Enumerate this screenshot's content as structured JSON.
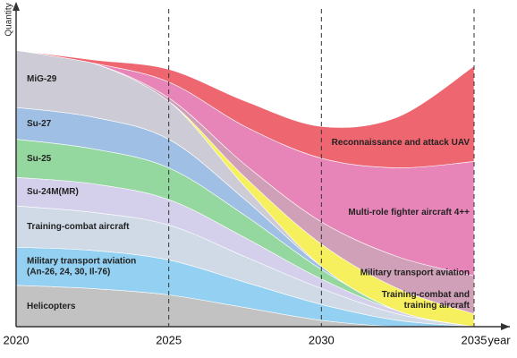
{
  "chart_data": {
    "type": "stacked_area",
    "y_label": "Quantity",
    "x_label": "year",
    "x": [
      2020,
      2022.5,
      2025,
      2027.5,
      2030,
      2032.5,
      2035
    ],
    "xlim": [
      2020,
      2035
    ],
    "xticks": [
      2020,
      2025,
      2030,
      2035
    ],
    "ylim": [
      0,
      100
    ],
    "grid": true,
    "series": [
      {
        "name": "Helicopters",
        "color": "#b4b4b4",
        "values": [
          13,
          12,
          10,
          6,
          2,
          0,
          0
        ]
      },
      {
        "name": "Military transport aviation\n(An-26, 24, 30, Il-76)",
        "color": "#7cc6ee",
        "values": [
          12,
          12,
          11,
          8,
          5,
          2,
          0
        ]
      },
      {
        "name": "Training-combat aircraft",
        "color": "#c6d2e2",
        "values": [
          13,
          12,
          11,
          8,
          5,
          2,
          0
        ]
      },
      {
        "name": "Su-24M(MR)",
        "color": "#cac6e6",
        "values": [
          9,
          9,
          8,
          6,
          3,
          1,
          0
        ]
      },
      {
        "name": "Su-25",
        "color": "#7ed08a",
        "values": [
          12,
          11,
          10,
          7,
          3,
          0,
          0
        ]
      },
      {
        "name": "Su-27",
        "color": "#8ab2de",
        "values": [
          10,
          10,
          9,
          5,
          1,
          0,
          0
        ]
      },
      {
        "name": "MiG-29",
        "color": "#c2c0cc",
        "values": [
          18,
          17,
          12,
          4,
          0,
          0,
          0
        ]
      },
      {
        "name": "Training-combat and\ntraining aircraft",
        "color": "#f4ec3a",
        "values": [
          0,
          0,
          0,
          3,
          7,
          7,
          4
        ]
      },
      {
        "name": "Military transport aviation",
        "color": "#c68aa8",
        "values": [
          0,
          0,
          1,
          4,
          7,
          10,
          12
        ]
      },
      {
        "name": "Multi-role fighter aircraft 4++",
        "color": "#e26aaa",
        "values": [
          0,
          0,
          5,
          12,
          20,
          28,
          36
        ]
      },
      {
        "name": "Reconnaissance and attack UAV",
        "color": "#ea4450",
        "values": [
          0,
          1,
          4,
          8,
          10,
          16,
          30
        ]
      }
    ]
  }
}
